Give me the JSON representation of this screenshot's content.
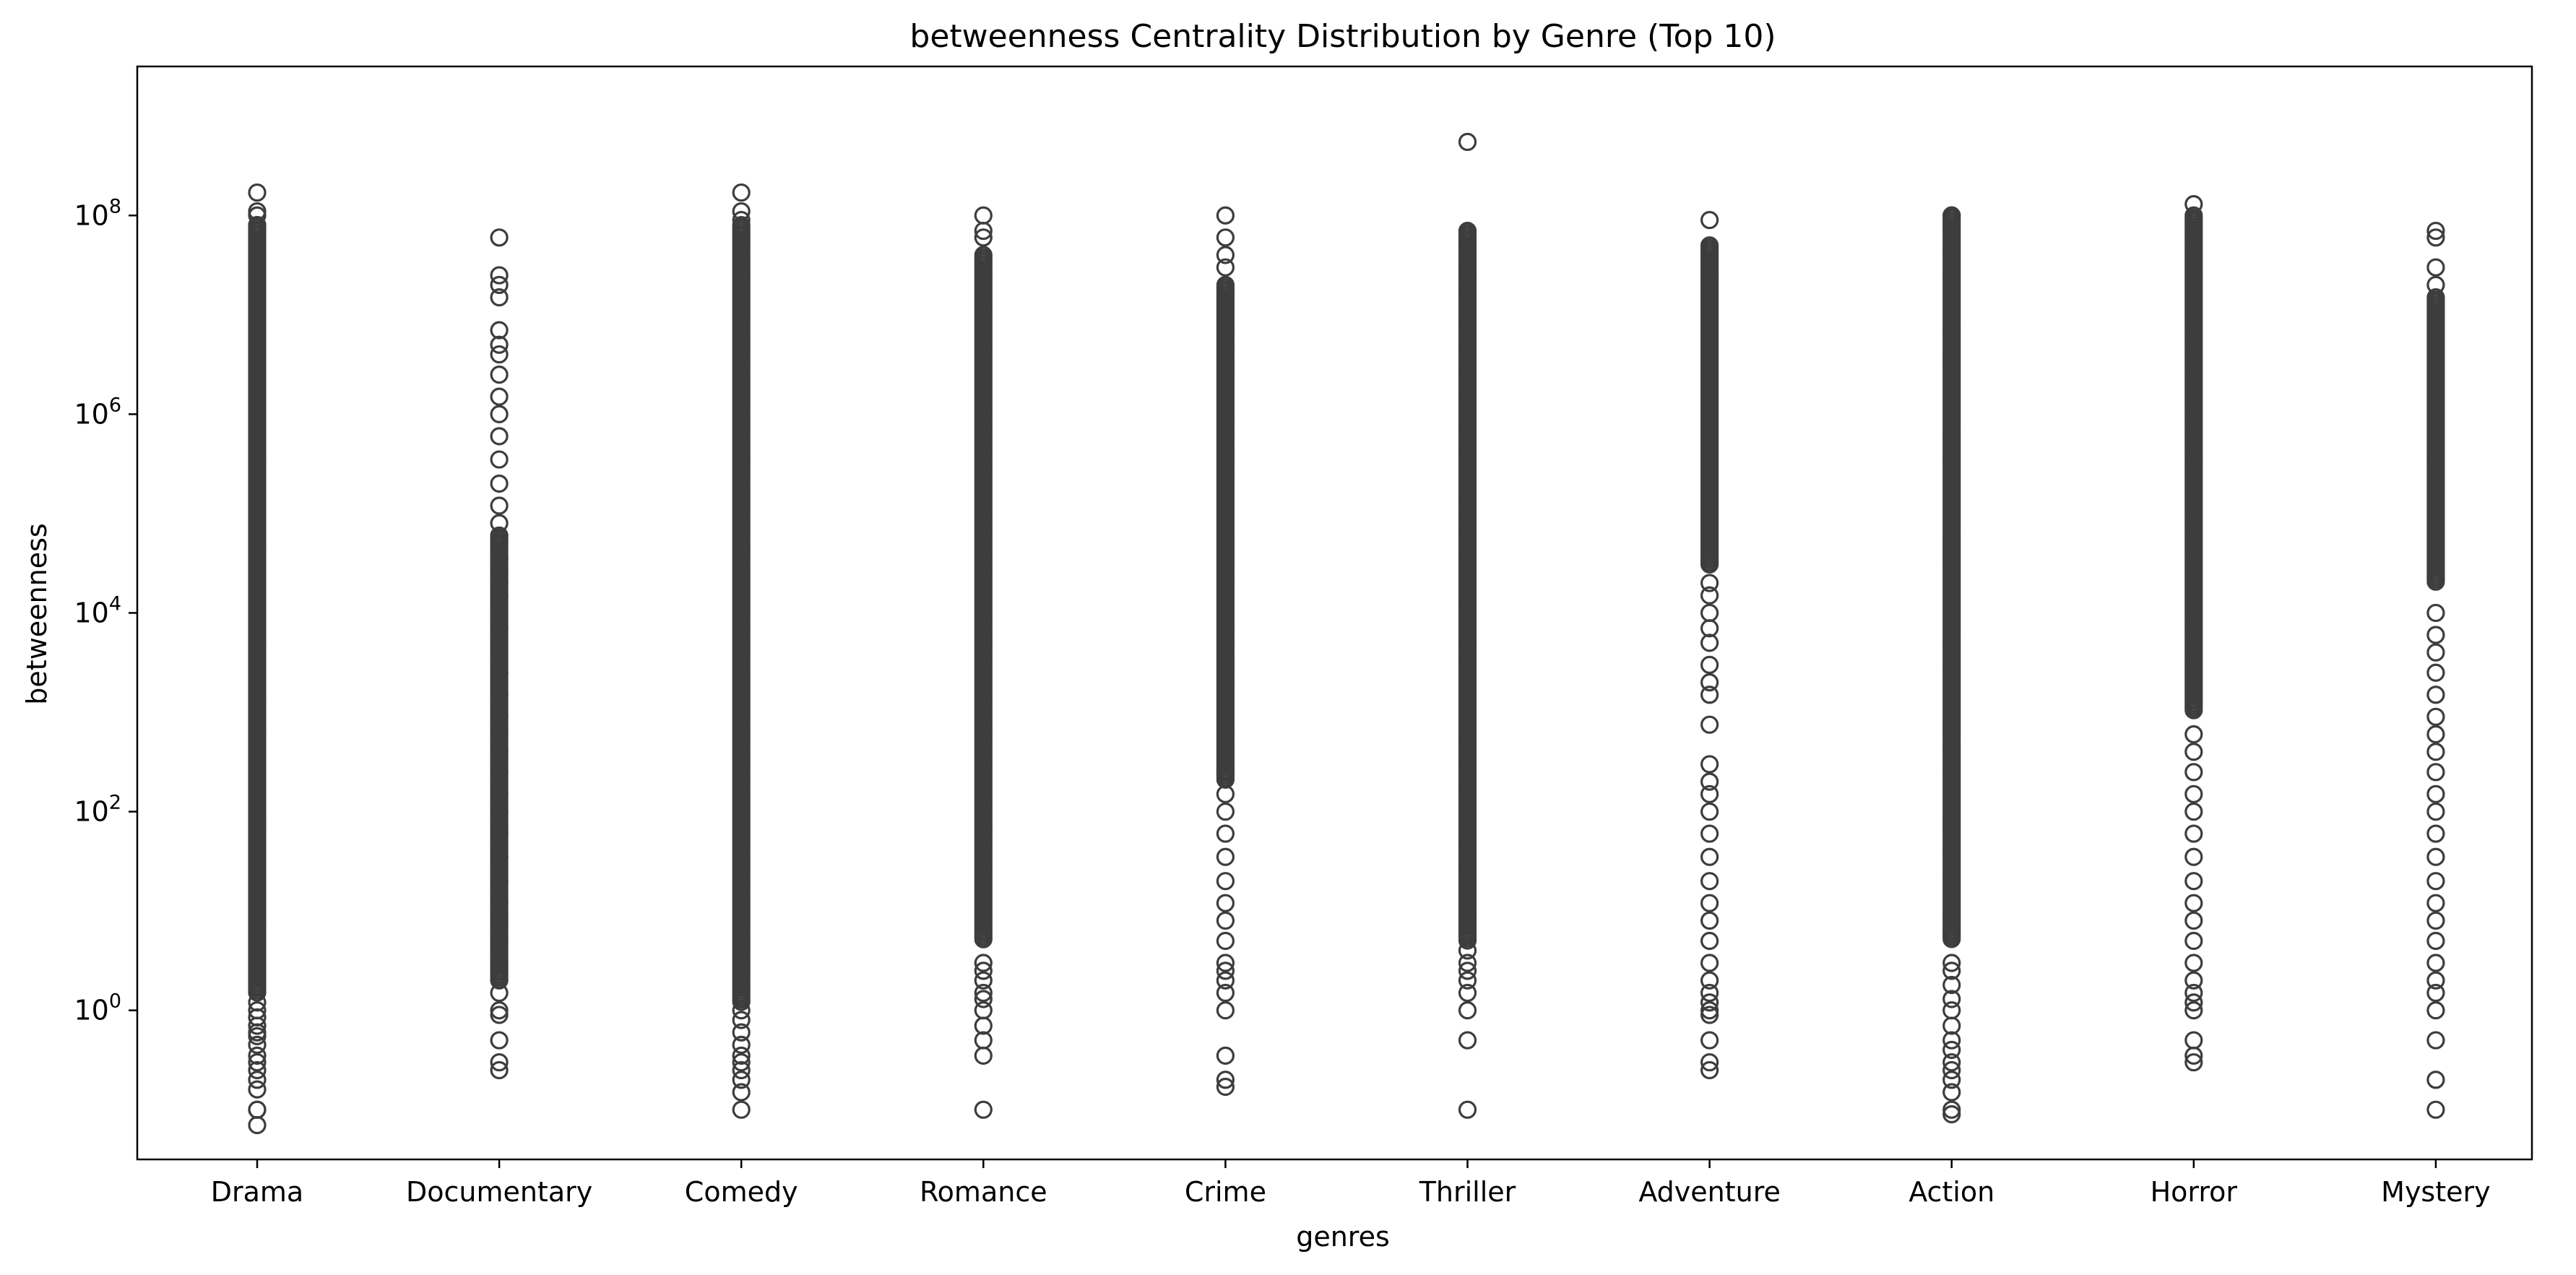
{
  "chart_data": {
    "type": "scatter",
    "subtype": "strip / boxplot outliers",
    "title": "betweenness Centrality Distribution by Genre (Top 10)",
    "xlabel": "genres",
    "ylabel": "betweenness",
    "yscale": "log",
    "ylim": [
      0.0316,
      3160000000.0
    ],
    "yticks": [
      {
        "value": 1,
        "base": "10",
        "exp": "0"
      },
      {
        "value": 100,
        "base": "10",
        "exp": "2"
      },
      {
        "value": 10000,
        "base": "10",
        "exp": "4"
      },
      {
        "value": 1000000,
        "base": "10",
        "exp": "6"
      },
      {
        "value": 100000000,
        "base": "10",
        "exp": "8"
      }
    ],
    "grid": false,
    "legend": "none",
    "marker_color": "#3d3d3d",
    "categories": [
      "Drama",
      "Documentary",
      "Comedy",
      "Romance",
      "Crime",
      "Thriller",
      "Adventure",
      "Action",
      "Horror",
      "Mystery"
    ],
    "series": [
      {
        "category": "Drama",
        "dense_range": [
          1.5,
          80000000
        ],
        "points": [
          0.07,
          0.1,
          0.1,
          0.16,
          0.2,
          0.25,
          0.3,
          0.35,
          0.45,
          0.55,
          0.6,
          0.7,
          0.85,
          1,
          1.2,
          80000000,
          100000000,
          110000000,
          170000000
        ]
      },
      {
        "category": "Documentary",
        "dense_range": [
          2,
          60000
        ],
        "points": [
          0.25,
          0.3,
          0.5,
          0.9,
          1,
          1.5,
          2,
          2.5,
          3,
          5,
          8,
          12,
          20,
          35,
          60,
          100,
          150,
          250,
          400,
          600,
          900,
          1500,
          2500,
          7000,
          15000,
          20000,
          25000,
          35000,
          50000,
          60000,
          80000,
          120000,
          200000,
          350000,
          600000,
          1000000,
          1500000,
          2500000,
          4000000,
          5000000,
          7000000,
          15000000,
          20000000,
          25000000,
          60000000
        ]
      },
      {
        "category": "Comedy",
        "dense_range": [
          1.2,
          80000000
        ],
        "points": [
          0.1,
          0.15,
          0.2,
          0.25,
          0.3,
          0.35,
          0.45,
          0.6,
          0.8,
          1,
          90000000,
          110000000,
          170000000
        ]
      },
      {
        "category": "Romance",
        "dense_range": [
          5,
          40000000
        ],
        "points": [
          0.1,
          0.35,
          0.5,
          0.7,
          1,
          1.3,
          1.5,
          2,
          2.5,
          3,
          60000000,
          70000000,
          100000000
        ]
      },
      {
        "category": "Crime",
        "dense_range": [
          200,
          20000000
        ],
        "points": [
          0.17,
          0.2,
          0.35,
          1,
          1.5,
          2,
          2.5,
          3,
          5,
          8,
          12,
          20,
          35,
          60,
          100,
          150,
          250,
          400,
          30000000,
          40000000,
          60000000,
          100000000
        ]
      },
      {
        "category": "Thriller",
        "dense_range": [
          5,
          70000000
        ],
        "points": [
          0.1,
          0.5,
          1,
          1.5,
          2,
          2.5,
          3,
          4,
          550000000
        ]
      },
      {
        "category": "Adventure",
        "dense_range": [
          30000,
          50000000
        ],
        "points": [
          0.25,
          0.3,
          0.5,
          0.9,
          1,
          1.2,
          1.5,
          2,
          3,
          5,
          8,
          12,
          20,
          35,
          60,
          100,
          150,
          200,
          300,
          750,
          1500,
          2000,
          3000,
          5000,
          7000,
          10000,
          15000,
          20000,
          90000000
        ]
      },
      {
        "category": "Action",
        "dense_range": [
          5,
          100000000
        ],
        "points": [
          0.09,
          0.1,
          0.15,
          0.2,
          0.25,
          0.3,
          0.4,
          0.5,
          0.7,
          1,
          1.3,
          1.8,
          2.5,
          3,
          100000000
        ]
      },
      {
        "category": "Horror",
        "dense_range": [
          1000,
          100000000
        ],
        "points": [
          0.3,
          0.35,
          0.5,
          1,
          1.2,
          1.5,
          2,
          3,
          5,
          8,
          12,
          20,
          35,
          60,
          100,
          150,
          250,
          400,
          600,
          130000000
        ]
      },
      {
        "category": "Mystery",
        "dense_range": [
          20000,
          15000000
        ],
        "points": [
          0.1,
          0.2,
          0.5,
          1,
          1.5,
          2,
          3,
          5,
          8,
          12,
          20,
          35,
          60,
          100,
          150,
          250,
          400,
          600,
          900,
          1500,
          2500,
          4000,
          6000,
          10000,
          20000000,
          30000000,
          60000000,
          70000000
        ]
      }
    ]
  }
}
